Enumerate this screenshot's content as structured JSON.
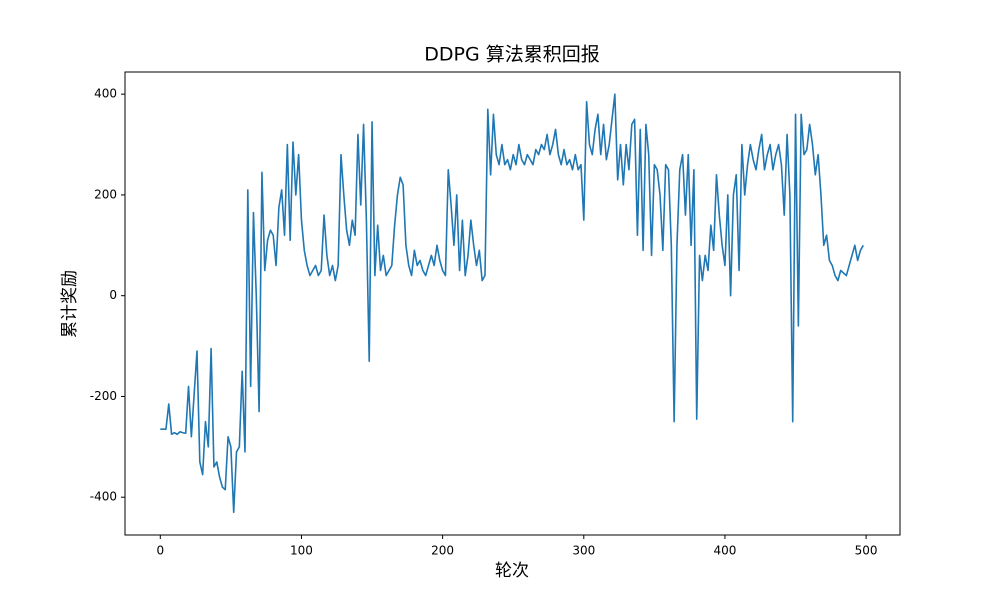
{
  "chart_data": {
    "type": "line",
    "title": "DDPG 算法累积回报",
    "xlabel": "轮次",
    "ylabel": "累计奖励",
    "x": [
      0,
      2,
      4,
      6,
      8,
      10,
      12,
      14,
      16,
      18,
      20,
      22,
      24,
      26,
      28,
      30,
      32,
      34,
      36,
      38,
      40,
      42,
      44,
      46,
      48,
      50,
      52,
      54,
      56,
      58,
      60,
      62,
      64,
      66,
      68,
      70,
      72,
      74,
      76,
      78,
      80,
      82,
      84,
      86,
      88,
      90,
      92,
      94,
      96,
      98,
      100,
      102,
      104,
      106,
      108,
      110,
      112,
      114,
      116,
      118,
      120,
      122,
      124,
      126,
      128,
      130,
      132,
      134,
      136,
      138,
      140,
      142,
      144,
      146,
      148,
      150,
      152,
      154,
      156,
      158,
      160,
      162,
      164,
      166,
      168,
      170,
      172,
      174,
      176,
      178,
      180,
      182,
      184,
      186,
      188,
      190,
      192,
      194,
      196,
      198,
      200,
      202,
      204,
      206,
      208,
      210,
      212,
      214,
      216,
      218,
      220,
      222,
      224,
      226,
      228,
      230,
      232,
      234,
      236,
      238,
      240,
      242,
      244,
      246,
      248,
      250,
      252,
      254,
      256,
      258,
      260,
      262,
      264,
      266,
      268,
      270,
      272,
      274,
      276,
      278,
      280,
      282,
      284,
      286,
      288,
      290,
      292,
      294,
      296,
      298,
      300,
      302,
      304,
      306,
      308,
      310,
      312,
      314,
      316,
      318,
      320,
      322,
      324,
      326,
      328,
      330,
      332,
      334,
      336,
      338,
      340,
      342,
      344,
      346,
      348,
      350,
      352,
      354,
      356,
      358,
      360,
      362,
      364,
      366,
      368,
      370,
      372,
      374,
      376,
      378,
      380,
      382,
      384,
      386,
      388,
      390,
      392,
      394,
      396,
      398,
      400,
      402,
      404,
      406,
      408,
      410,
      412,
      414,
      416,
      418,
      420,
      422,
      424,
      426,
      428,
      430,
      432,
      434,
      436,
      438,
      440,
      442,
      444,
      446,
      448,
      450,
      452,
      454,
      456,
      458,
      460,
      462,
      464,
      466,
      468,
      470,
      472,
      474,
      476,
      478,
      480,
      482,
      484,
      486,
      488,
      490,
      492,
      494,
      496,
      498
    ],
    "series": [
      {
        "name": "DDPG",
        "color": "#1f77b4",
        "values": [
          -265,
          -265,
          -265,
          -215,
          -275,
          -272,
          -275,
          -270,
          -272,
          -273,
          -180,
          -280,
          -195,
          -110,
          -330,
          -355,
          -250,
          -300,
          -105,
          -340,
          -330,
          -360,
          -380,
          -385,
          -280,
          -300,
          -430,
          -310,
          -300,
          -150,
          -310,
          210,
          -180,
          165,
          0,
          -230,
          245,
          50,
          110,
          130,
          120,
          60,
          175,
          210,
          120,
          300,
          110,
          305,
          200,
          280,
          150,
          90,
          60,
          40,
          50,
          60,
          40,
          50,
          160,
          80,
          40,
          60,
          30,
          60,
          280,
          200,
          130,
          100,
          150,
          120,
          320,
          180,
          340,
          150,
          -130,
          345,
          40,
          140,
          50,
          80,
          40,
          50,
          60,
          140,
          200,
          235,
          220,
          100,
          60,
          40,
          90,
          60,
          70,
          50,
          40,
          60,
          80,
          60,
          100,
          70,
          50,
          40,
          250,
          180,
          100,
          200,
          50,
          150,
          40,
          80,
          150,
          100,
          60,
          90,
          30,
          40,
          370,
          240,
          360,
          280,
          260,
          300,
          260,
          270,
          250,
          280,
          260,
          300,
          270,
          260,
          280,
          270,
          260,
          290,
          280,
          300,
          290,
          320,
          280,
          300,
          330,
          280,
          260,
          290,
          260,
          270,
          250,
          280,
          250,
          260,
          150,
          385,
          300,
          280,
          330,
          360,
          280,
          340,
          270,
          300,
          350,
          400,
          230,
          300,
          220,
          300,
          250,
          340,
          350,
          120,
          330,
          90,
          340,
          280,
          80,
          260,
          250,
          200,
          90,
          260,
          250,
          100,
          -250,
          100,
          250,
          280,
          160,
          280,
          100,
          250,
          -245,
          80,
          30,
          80,
          50,
          140,
          90,
          240,
          160,
          100,
          60,
          200,
          0,
          200,
          240,
          50,
          300,
          200,
          260,
          300,
          270,
          250,
          290,
          320,
          250,
          280,
          300,
          250,
          280,
          300,
          260,
          160,
          320,
          200,
          -250,
          360,
          -60,
          360,
          280,
          290,
          340,
          300,
          240,
          280,
          200,
          100,
          120,
          70,
          60,
          40,
          30,
          50,
          45,
          40,
          60,
          80,
          100,
          70,
          90,
          100
        ]
      }
    ],
    "xlim": [
      -25,
      524
    ],
    "xticks": [
      0,
      100,
      200,
      300,
      400,
      500
    ],
    "ylim": [
      -475,
      444
    ],
    "yticks": [
      -400,
      -200,
      0,
      200,
      400
    ],
    "grid": false
  }
}
